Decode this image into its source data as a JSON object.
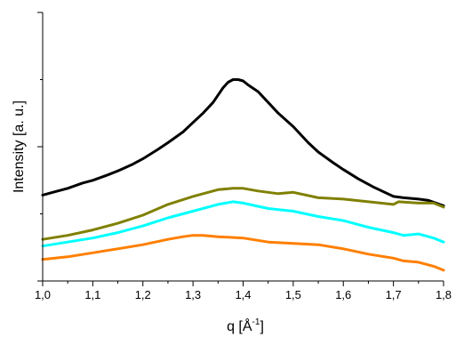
{
  "chart_data": {
    "type": "line",
    "xlabel": "q [Å",
    "xlabel_sup": "-1",
    "xlabel_end": "]",
    "ylabel": "Intensity [a. u.]",
    "xlim": [
      1.0,
      1.8
    ],
    "ylim": [
      0,
      1
    ],
    "grid": false,
    "legend": "none",
    "x_ticks": [
      1.0,
      1.1,
      1.2,
      1.3,
      1.4,
      1.5,
      1.6,
      1.7,
      1.8
    ],
    "x_tick_labels": [
      "1,0",
      "1,1",
      "1,2",
      "1,3",
      "1,4",
      "1,5",
      "1,6",
      "1,7",
      "1,8"
    ],
    "y_ticks_major": [
      0.0,
      0.5,
      1.0
    ],
    "y_tick_labels_visible": false,
    "series": [
      {
        "color": "#000000",
        "points": [
          [
            1.0,
            0.32
          ],
          [
            1.02,
            0.33
          ],
          [
            1.05,
            0.345
          ],
          [
            1.08,
            0.365
          ],
          [
            1.1,
            0.375
          ],
          [
            1.13,
            0.395
          ],
          [
            1.15,
            0.41
          ],
          [
            1.18,
            0.435
          ],
          [
            1.2,
            0.455
          ],
          [
            1.23,
            0.49
          ],
          [
            1.25,
            0.515
          ],
          [
            1.28,
            0.555
          ],
          [
            1.3,
            0.59
          ],
          [
            1.32,
            0.625
          ],
          [
            1.34,
            0.665
          ],
          [
            1.36,
            0.72
          ],
          [
            1.37,
            0.74
          ],
          [
            1.38,
            0.75
          ],
          [
            1.39,
            0.75
          ],
          [
            1.4,
            0.745
          ],
          [
            1.41,
            0.73
          ],
          [
            1.43,
            0.705
          ],
          [
            1.45,
            0.665
          ],
          [
            1.47,
            0.625
          ],
          [
            1.5,
            0.575
          ],
          [
            1.53,
            0.515
          ],
          [
            1.55,
            0.48
          ],
          [
            1.58,
            0.44
          ],
          [
            1.6,
            0.415
          ],
          [
            1.63,
            0.38
          ],
          [
            1.66,
            0.35
          ],
          [
            1.7,
            0.315
          ],
          [
            1.72,
            0.31
          ],
          [
            1.75,
            0.305
          ],
          [
            1.77,
            0.3
          ],
          [
            1.8,
            0.28
          ]
        ]
      },
      {
        "color": "#808000",
        "points": [
          [
            1.0,
            0.155
          ],
          [
            1.05,
            0.17
          ],
          [
            1.1,
            0.19
          ],
          [
            1.15,
            0.215
          ],
          [
            1.2,
            0.245
          ],
          [
            1.25,
            0.285
          ],
          [
            1.3,
            0.315
          ],
          [
            1.35,
            0.34
          ],
          [
            1.38,
            0.345
          ],
          [
            1.4,
            0.345
          ],
          [
            1.43,
            0.335
          ],
          [
            1.47,
            0.325
          ],
          [
            1.5,
            0.33
          ],
          [
            1.55,
            0.31
          ],
          [
            1.6,
            0.305
          ],
          [
            1.65,
            0.295
          ],
          [
            1.7,
            0.285
          ],
          [
            1.71,
            0.295
          ],
          [
            1.75,
            0.29
          ],
          [
            1.78,
            0.29
          ],
          [
            1.8,
            0.275
          ]
        ]
      },
      {
        "color": "#00ffff",
        "points": [
          [
            1.0,
            0.13
          ],
          [
            1.05,
            0.145
          ],
          [
            1.1,
            0.16
          ],
          [
            1.15,
            0.18
          ],
          [
            1.2,
            0.205
          ],
          [
            1.25,
            0.235
          ],
          [
            1.3,
            0.26
          ],
          [
            1.35,
            0.285
          ],
          [
            1.38,
            0.295
          ],
          [
            1.4,
            0.29
          ],
          [
            1.45,
            0.27
          ],
          [
            1.5,
            0.26
          ],
          [
            1.55,
            0.24
          ],
          [
            1.6,
            0.225
          ],
          [
            1.65,
            0.2
          ],
          [
            1.7,
            0.18
          ],
          [
            1.72,
            0.17
          ],
          [
            1.75,
            0.175
          ],
          [
            1.78,
            0.16
          ],
          [
            1.8,
            0.145
          ]
        ]
      },
      {
        "color": "#ff7f00",
        "points": [
          [
            1.0,
            0.08
          ],
          [
            1.05,
            0.09
          ],
          [
            1.1,
            0.105
          ],
          [
            1.15,
            0.12
          ],
          [
            1.2,
            0.135
          ],
          [
            1.25,
            0.155
          ],
          [
            1.28,
            0.165
          ],
          [
            1.3,
            0.17
          ],
          [
            1.32,
            0.17
          ],
          [
            1.35,
            0.165
          ],
          [
            1.4,
            0.16
          ],
          [
            1.45,
            0.145
          ],
          [
            1.5,
            0.14
          ],
          [
            1.55,
            0.135
          ],
          [
            1.6,
            0.12
          ],
          [
            1.65,
            0.1
          ],
          [
            1.7,
            0.085
          ],
          [
            1.72,
            0.075
          ],
          [
            1.75,
            0.07
          ],
          [
            1.78,
            0.055
          ],
          [
            1.8,
            0.04
          ]
        ]
      }
    ]
  }
}
